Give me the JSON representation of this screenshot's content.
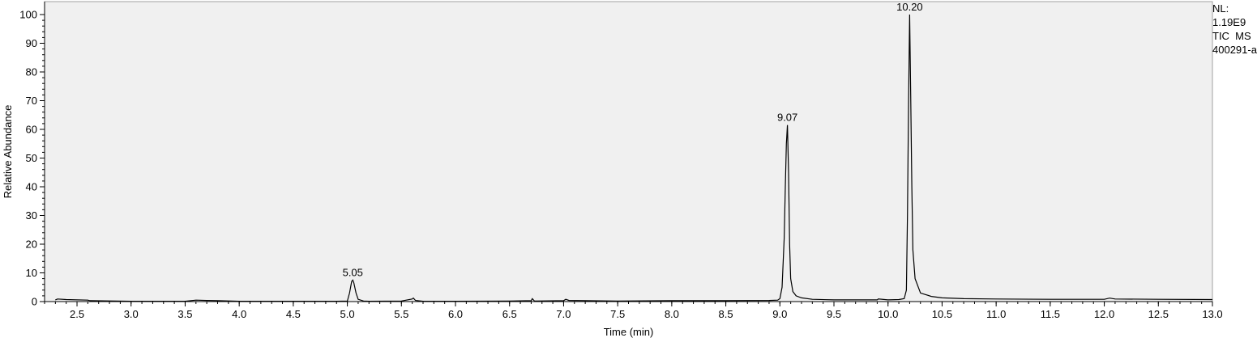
{
  "chart_data": {
    "type": "line",
    "title": "",
    "xlabel": "Time (min)",
    "ylabel": "Relative Abundance",
    "xlim": [
      2.2,
      13.0
    ],
    "ylim": [
      0,
      100
    ],
    "x_ticks": [
      2.5,
      3.0,
      3.5,
      4.0,
      4.5,
      5.0,
      5.5,
      6.0,
      6.5,
      7.0,
      7.5,
      8.0,
      8.5,
      9.0,
      9.5,
      10.0,
      10.5,
      11.0,
      11.5,
      12.0,
      12.5,
      13.0
    ],
    "x_tick_labels": [
      "2.5",
      "3.0",
      "3.5",
      "4.0",
      "4.5",
      "5.0",
      "5.5",
      "6.0",
      "6.5",
      "7.0",
      "7.5",
      "8.0",
      "8.5",
      "9.0",
      "9.5",
      "10.0",
      "10.5",
      "11.0",
      "11.5",
      "12.0",
      "12.5",
      "13.0"
    ],
    "y_ticks": [
      0,
      10,
      20,
      30,
      40,
      50,
      60,
      70,
      80,
      90,
      100
    ],
    "y_tick_labels": [
      "0",
      "10",
      "20",
      "30",
      "40",
      "50",
      "60",
      "70",
      "80",
      "90",
      "100"
    ],
    "grid": false,
    "background_color": "#f0f0f0",
    "line_color": "#000000",
    "series": [
      {
        "x": [
          2.3,
          2.32,
          2.4,
          2.6,
          2.62,
          3.0,
          3.5,
          3.6,
          3.7,
          3.8,
          4.0,
          4.5,
          4.9,
          5.0,
          5.02,
          5.04,
          5.05,
          5.06,
          5.08,
          5.1,
          5.15,
          5.2,
          5.5,
          5.6,
          5.61,
          5.63,
          5.7,
          6.0,
          6.5,
          6.7,
          6.71,
          6.73,
          7.0,
          7.02,
          7.05,
          7.5,
          8.0,
          8.5,
          8.9,
          8.98,
          9.0,
          9.02,
          9.04,
          9.05,
          9.06,
          9.07,
          9.08,
          9.09,
          9.1,
          9.12,
          9.15,
          9.2,
          9.3,
          9.5,
          9.9,
          9.91,
          10.0,
          10.1,
          10.15,
          10.17,
          10.18,
          10.19,
          10.2,
          10.21,
          10.22,
          10.23,
          10.25,
          10.3,
          10.4,
          10.5,
          10.7,
          11.0,
          11.5,
          12.0,
          12.05,
          12.1,
          12.5,
          13.0
        ],
        "y": [
          0.6,
          0.9,
          0.7,
          0.5,
          0.3,
          0.1,
          0.1,
          0.5,
          0.4,
          0.3,
          0.1,
          0.1,
          0.1,
          0.2,
          3.0,
          7.0,
          7.5,
          6.5,
          3.0,
          0.8,
          0.2,
          0.1,
          0.2,
          0.9,
          1.2,
          0.4,
          0.1,
          0.1,
          0.2,
          0.3,
          1.0,
          0.2,
          0.3,
          0.8,
          0.4,
          0.2,
          0.3,
          0.3,
          0.4,
          0.5,
          1.0,
          5.0,
          22.0,
          40.0,
          55.0,
          61.5,
          45.0,
          20.0,
          8.0,
          3.5,
          2.0,
          1.3,
          0.8,
          0.6,
          0.6,
          0.9,
          0.6,
          0.7,
          1.0,
          4.0,
          30.0,
          70.0,
          100.0,
          72.0,
          40.0,
          18.0,
          8.0,
          3.0,
          1.8,
          1.3,
          1.0,
          0.9,
          0.8,
          0.8,
          1.2,
          0.9,
          0.8,
          0.7
        ]
      }
    ],
    "peak_labels": [
      {
        "x": 5.05,
        "y": 7.5,
        "text": "5.05"
      },
      {
        "x": 9.07,
        "y": 61.5,
        "text": "9.07"
      },
      {
        "x": 10.2,
        "y": 100.0,
        "text": "10.20"
      }
    ]
  },
  "meta": {
    "nl_label": "NL:",
    "nl_value": "1.19E9",
    "scan_type": "TIC  MS",
    "file_name": "400291-a"
  }
}
